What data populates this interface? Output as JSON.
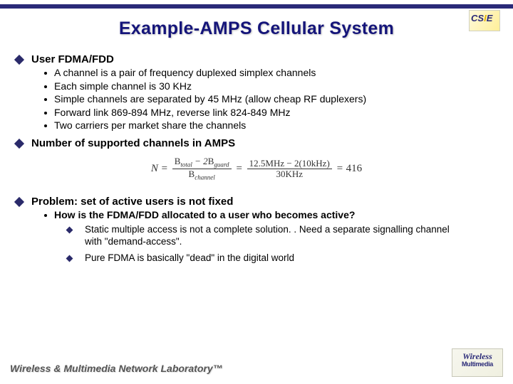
{
  "title": "Example-AMPS Cellular System",
  "topbar_color": "#2a2a78",
  "title_color": "#15157a",
  "logo_top": "CSIE",
  "sections": [
    {
      "heading": "User FDMA/FDD",
      "bullets": [
        "A channel is a pair of frequency duplexed simplex channels",
        "Each simple channel is 30 KHz",
        "Simple channels are separated by 45 MHz (allow cheap RF duplexers)",
        "Forward link 869-894 MHz, reverse link 824-849 MHz",
        "Two carriers per market share the channels"
      ]
    },
    {
      "heading": "Number of supported channels in AMPS"
    },
    {
      "heading": "Problem: set of active users is not fixed",
      "bullets_bold": [
        "How is the FDMA/FDD allocated to a user who becomes active?"
      ],
      "subbullets": [
        "Static multiple access is not a complete solution. . Need a separate signalling channel with \"demand-access\".",
        "Pure FDMA is basically \"dead\" in the digital world"
      ]
    }
  ],
  "formula": {
    "lhs_var": "N",
    "frac1_num_parts": [
      "B",
      "total",
      " − 2",
      "B",
      "guard"
    ],
    "frac1_den_parts": [
      "B",
      "channel"
    ],
    "frac2_num": "12.5MHz − 2(10kHz)",
    "frac2_den": "30KHz",
    "result": "416"
  },
  "footer": "Wireless & Multimedia Network Laboratory™",
  "logo_bottom_l1": "Wireless",
  "logo_bottom_l2": "Multimedia"
}
